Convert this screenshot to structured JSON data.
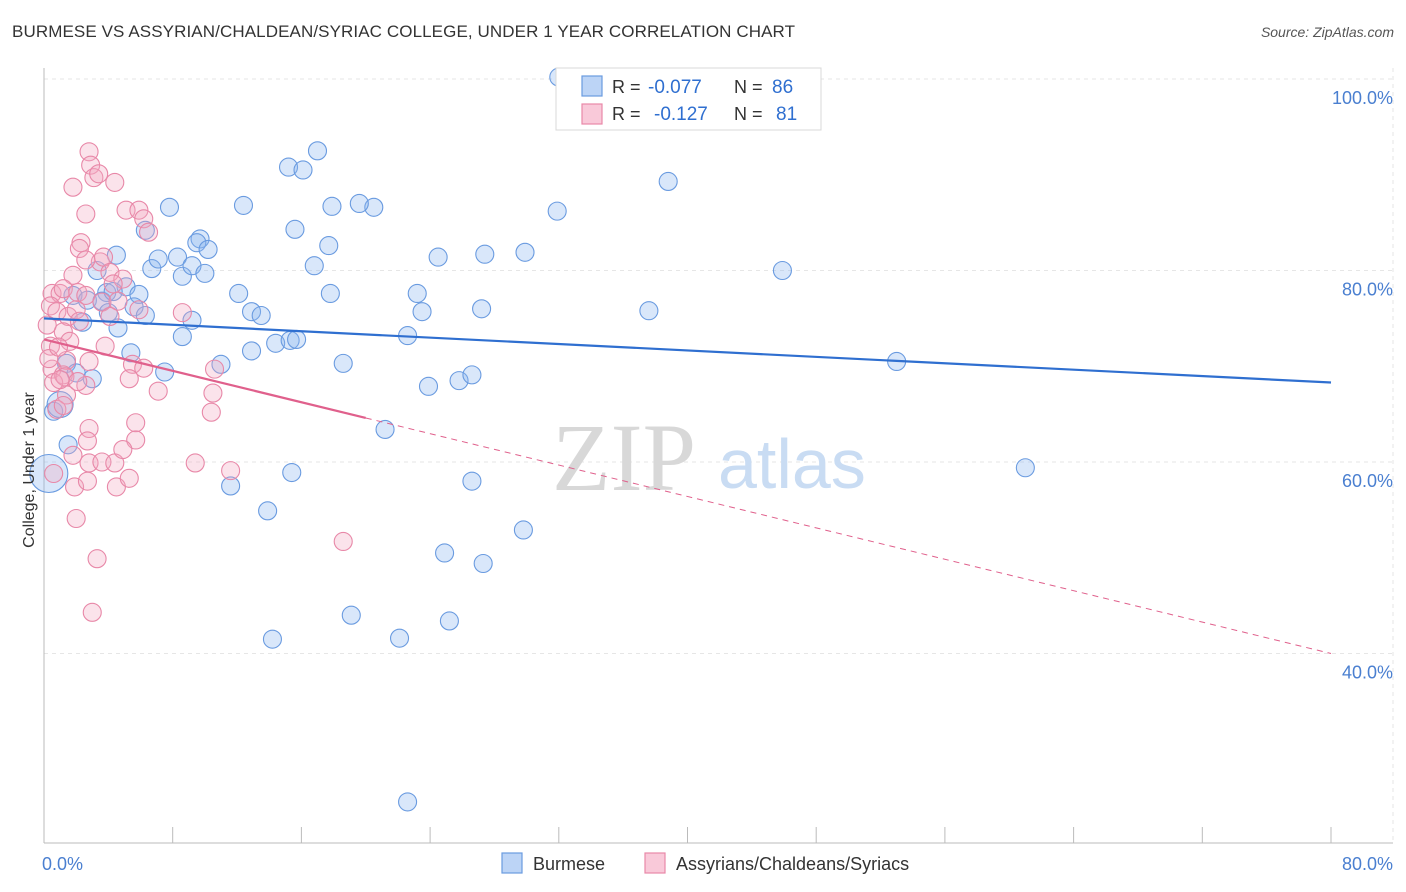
{
  "chart_data": {
    "type": "scatter",
    "title": "BURMESE VS ASSYRIAN/CHALDEAN/SYRIAC COLLEGE, UNDER 1 YEAR CORRELATION CHART",
    "source": "Source: ZipAtlas.com",
    "xlabel": "",
    "ylabel": "College, Under 1 year",
    "xlim": [
      0,
      80
    ],
    "ylim": [
      20,
      102
    ],
    "x_tick_labels": [
      "0.0%",
      "80.0%"
    ],
    "y_ticks": [
      {
        "value": 100,
        "label": "100.0%"
      },
      {
        "value": 80,
        "label": "80.0%"
      },
      {
        "value": 60,
        "label": "60.0%"
      },
      {
        "value": 40,
        "label": "40.0%"
      }
    ],
    "grid": true,
    "watermark": {
      "zip": "ZIP",
      "atlas": "atlas"
    },
    "legend": {
      "placement": "top-center",
      "rows": [
        {
          "r_label": "R =",
          "r_value": "-0.077",
          "n_label": "N =",
          "n_value": "86"
        },
        {
          "r_label": "R =",
          "r_value": "-0.127",
          "n_label": "N =",
          "n_value": "81"
        }
      ]
    },
    "series": [
      {
        "name": "Burmese",
        "color": "#8ab4f0",
        "edge_color": "#6a9be0",
        "trend_color": "#2f6fd0",
        "trend": {
          "x0": 0,
          "y0": 75.0,
          "x1": 80,
          "y1": 68.3,
          "dashed_from": null
        },
        "points": [
          [
            32,
            100.2
          ],
          [
            7.8,
            86.6
          ],
          [
            12.4,
            86.8
          ],
          [
            17.9,
            86.7
          ],
          [
            20.5,
            86.6
          ],
          [
            19.6,
            87.0
          ],
          [
            31.9,
            86.2
          ],
          [
            38.8,
            89.3
          ],
          [
            15.2,
            90.8
          ],
          [
            16.1,
            90.5
          ],
          [
            17.0,
            92.5
          ],
          [
            9.7,
            83.3
          ],
          [
            9.5,
            82.9
          ],
          [
            15.6,
            84.3
          ],
          [
            17.7,
            82.6
          ],
          [
            4.5,
            81.6
          ],
          [
            8.3,
            81.4
          ],
          [
            10.2,
            82.2
          ],
          [
            24.5,
            81.4
          ],
          [
            27.4,
            81.7
          ],
          [
            29.9,
            81.9
          ],
          [
            6.7,
            80.2
          ],
          [
            7.1,
            81.2
          ],
          [
            8.6,
            79.4
          ],
          [
            9.2,
            80.5
          ],
          [
            10.0,
            79.7
          ],
          [
            16.8,
            80.5
          ],
          [
            3.3,
            80.0
          ],
          [
            6.3,
            84.2
          ],
          [
            45.9,
            80.0
          ],
          [
            3.9,
            77.7
          ],
          [
            5.1,
            78.3
          ],
          [
            5.9,
            77.5
          ],
          [
            12.1,
            77.6
          ],
          [
            17.8,
            77.6
          ],
          [
            1.8,
            77.4
          ],
          [
            2.7,
            76.9
          ],
          [
            3.6,
            76.8
          ],
          [
            4.3,
            77.8
          ],
          [
            5.6,
            76.2
          ],
          [
            6.3,
            75.3
          ],
          [
            9.2,
            74.8
          ],
          [
            12.9,
            75.7
          ],
          [
            13.5,
            75.3
          ],
          [
            2.4,
            74.6
          ],
          [
            4.6,
            74.0
          ],
          [
            4.0,
            75.6
          ],
          [
            23.2,
            77.6
          ],
          [
            23.5,
            75.7
          ],
          [
            27.2,
            76.0
          ],
          [
            37.6,
            75.8
          ],
          [
            8.6,
            73.1
          ],
          [
            14.4,
            72.4
          ],
          [
            15.3,
            72.7
          ],
          [
            15.7,
            72.8
          ],
          [
            22.6,
            73.2
          ],
          [
            5.4,
            71.4
          ],
          [
            11.0,
            70.2
          ],
          [
            12.9,
            71.6
          ],
          [
            18.6,
            70.3
          ],
          [
            53.0,
            70.5
          ],
          [
            1.4,
            70.3
          ],
          [
            2.0,
            69.3
          ],
          [
            7.5,
            69.4
          ],
          [
            3.0,
            68.7
          ],
          [
            23.9,
            67.9
          ],
          [
            25.8,
            68.5
          ],
          [
            26.6,
            69.1
          ],
          [
            21.2,
            63.4
          ],
          [
            1.5,
            61.8
          ],
          [
            0.6,
            65.3
          ],
          [
            15.4,
            58.9
          ],
          [
            11.6,
            57.5
          ],
          [
            26.6,
            58.0
          ],
          [
            61.0,
            59.4
          ],
          [
            0.3,
            58.8
          ],
          [
            13.9,
            54.9
          ],
          [
            29.8,
            52.9
          ],
          [
            24.9,
            50.5
          ],
          [
            27.3,
            49.4
          ],
          [
            19.1,
            44.0
          ],
          [
            25.2,
            43.4
          ],
          [
            14.2,
            41.5
          ],
          [
            22.1,
            41.6
          ],
          [
            22.6,
            24.5
          ],
          [
            1.0,
            66.0
          ]
        ]
      },
      {
        "name": "Assyrians/Chaldeans/Syriacs",
        "color": "#f4a8c2",
        "edge_color": "#e888a8",
        "trend_color": "#e0608c",
        "trend": {
          "x0": 0,
          "y0": 72.8,
          "x1": 80,
          "y1": 40.0,
          "dashed_from": 20.0
        },
        "points": [
          [
            2.8,
            92.4
          ],
          [
            2.9,
            91.0
          ],
          [
            3.1,
            89.7
          ],
          [
            3.4,
            90.1
          ],
          [
            4.4,
            89.2
          ],
          [
            1.8,
            88.7
          ],
          [
            2.6,
            85.9
          ],
          [
            5.1,
            86.3
          ],
          [
            5.9,
            86.3
          ],
          [
            6.2,
            85.4
          ],
          [
            6.5,
            84.0
          ],
          [
            2.3,
            82.9
          ],
          [
            2.2,
            82.3
          ],
          [
            3.5,
            80.9
          ],
          [
            3.7,
            81.4
          ],
          [
            2.6,
            81.1
          ],
          [
            4.1,
            79.8
          ],
          [
            4.9,
            79.1
          ],
          [
            1.8,
            79.5
          ],
          [
            0.5,
            77.6
          ],
          [
            1.0,
            77.6
          ],
          [
            1.2,
            78.1
          ],
          [
            2.1,
            77.7
          ],
          [
            2.6,
            77.4
          ],
          [
            0.4,
            76.3
          ],
          [
            0.8,
            75.7
          ],
          [
            1.5,
            75.2
          ],
          [
            2.0,
            75.9
          ],
          [
            3.6,
            76.7
          ],
          [
            4.3,
            78.6
          ],
          [
            4.6,
            76.8
          ],
          [
            0.2,
            74.3
          ],
          [
            1.2,
            73.6
          ],
          [
            1.6,
            72.6
          ],
          [
            2.2,
            74.7
          ],
          [
            5.9,
            75.9
          ],
          [
            8.6,
            75.6
          ],
          [
            0.4,
            72.1
          ],
          [
            1.4,
            70.6
          ],
          [
            2.8,
            70.5
          ],
          [
            5.5,
            70.2
          ],
          [
            0.5,
            69.7
          ],
          [
            1.2,
            69.1
          ],
          [
            0.6,
            68.3
          ],
          [
            1.4,
            67.0
          ],
          [
            2.6,
            68.0
          ],
          [
            5.3,
            68.7
          ],
          [
            7.1,
            67.4
          ],
          [
            10.5,
            67.2
          ],
          [
            0.8,
            65.5
          ],
          [
            1.2,
            65.9
          ],
          [
            10.4,
            65.2
          ],
          [
            2.8,
            63.5
          ],
          [
            5.7,
            64.1
          ],
          [
            2.7,
            62.2
          ],
          [
            5.7,
            62.3
          ],
          [
            1.8,
            60.7
          ],
          [
            2.8,
            59.9
          ],
          [
            3.6,
            60.0
          ],
          [
            4.4,
            59.9
          ],
          [
            9.4,
            59.9
          ],
          [
            11.6,
            59.1
          ],
          [
            4.5,
            57.4
          ],
          [
            1.9,
            57.4
          ],
          [
            5.3,
            58.3
          ],
          [
            2.0,
            54.1
          ],
          [
            18.6,
            51.7
          ],
          [
            3.3,
            49.9
          ],
          [
            3.0,
            44.3
          ],
          [
            0.3,
            70.8
          ],
          [
            0.9,
            72.0
          ],
          [
            1.3,
            68.9
          ],
          [
            3.8,
            72.1
          ],
          [
            6.2,
            69.8
          ],
          [
            4.9,
            61.3
          ],
          [
            10.6,
            69.7
          ],
          [
            0.6,
            58.8
          ],
          [
            2.1,
            68.4
          ],
          [
            2.7,
            58.0
          ],
          [
            4.1,
            75.2
          ],
          [
            1.0,
            68.6
          ]
        ]
      }
    ]
  }
}
